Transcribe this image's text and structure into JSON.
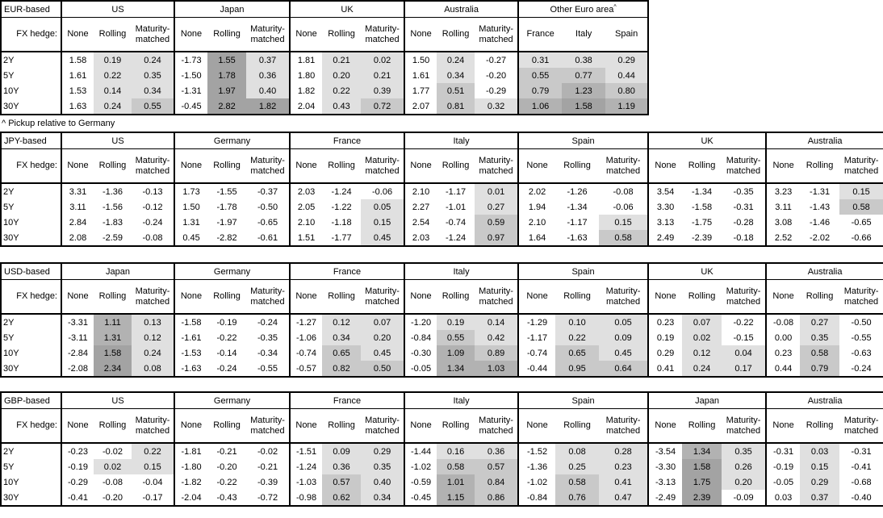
{
  "footnote": "^ Pickup relative to Germany",
  "chart_data": {
    "type": "table",
    "row_label_header": "FX hedge:",
    "maturities": [
      "2Y",
      "5Y",
      "10Y",
      "30Y"
    ],
    "hedge_columns": [
      "None",
      "Rolling",
      "Maturity-matched"
    ],
    "shading": {
      "s1": "#E0E0E0",
      "s2": "#C9C9C9",
      "s3": "#B2B2B2",
      "s4": "#A3A3A3"
    },
    "shading_rule": "cells shaded by value: <0 white, 0-0.5 s1, 0.5-1 s2, 1-1.5 s3, >=1.5 s4; applies to Rolling and Maturity-matched columns and all Other Euro area columns",
    "sections": [
      {
        "id": "eur",
        "base_label": "EUR-based",
        "blocks": [
          {
            "country": "US",
            "columns": "hedge",
            "rows": [
              [
                1.58,
                0.19,
                0.24
              ],
              [
                1.61,
                0.22,
                0.35
              ],
              [
                1.53,
                0.14,
                0.34
              ],
              [
                1.63,
                0.24,
                0.55
              ]
            ]
          },
          {
            "country": "Japan",
            "columns": "hedge",
            "rows": [
              [
                -1.73,
                1.55,
                0.37
              ],
              [
                -1.5,
                1.78,
                0.36
              ],
              [
                -1.31,
                1.97,
                0.4
              ],
              [
                -0.45,
                2.82,
                1.82
              ]
            ]
          },
          {
            "country": "UK",
            "columns": "hedge",
            "rows": [
              [
                1.81,
                0.21,
                0.02
              ],
              [
                1.8,
                0.2,
                0.21
              ],
              [
                1.82,
                0.22,
                0.39
              ],
              [
                2.04,
                0.43,
                0.72
              ]
            ]
          },
          {
            "country": "Australia",
            "columns": "hedge",
            "rows": [
              [
                1.5,
                0.24,
                -0.27
              ],
              [
                1.61,
                0.34,
                -0.2
              ],
              [
                1.77,
                0.51,
                -0.29
              ],
              [
                2.07,
                0.81,
                0.32
              ]
            ]
          },
          {
            "country": "Other Euro area",
            "sup": "^",
            "columns": [
              "France",
              "Italy",
              "Spain"
            ],
            "rows": [
              [
                0.31,
                0.38,
                0.29
              ],
              [
                0.55,
                0.77,
                0.44
              ],
              [
                0.79,
                1.23,
                0.8
              ],
              [
                1.06,
                1.58,
                1.19
              ]
            ]
          }
        ]
      },
      {
        "id": "jpy",
        "base_label": "JPY-based",
        "blocks": [
          {
            "country": "US",
            "columns": "hedge",
            "rows": [
              [
                3.31,
                -1.36,
                -0.13
              ],
              [
                3.11,
                -1.56,
                -0.12
              ],
              [
                2.84,
                -1.83,
                -0.24
              ],
              [
                2.08,
                -2.59,
                -0.08
              ]
            ]
          },
          {
            "country": "Germany",
            "columns": "hedge",
            "rows": [
              [
                1.73,
                -1.55,
                -0.37
              ],
              [
                1.5,
                -1.78,
                -0.5
              ],
              [
                1.31,
                -1.97,
                -0.65
              ],
              [
                0.45,
                -2.82,
                -0.61
              ]
            ]
          },
          {
            "country": "France",
            "columns": "hedge",
            "rows": [
              [
                2.03,
                -1.24,
                -0.06
              ],
              [
                2.05,
                -1.22,
                0.05
              ],
              [
                2.1,
                -1.18,
                0.15
              ],
              [
                1.51,
                -1.77,
                0.45
              ]
            ]
          },
          {
            "country": "Italy",
            "columns": "hedge",
            "rows": [
              [
                2.1,
                -1.17,
                0.01
              ],
              [
                2.27,
                -1.01,
                0.27
              ],
              [
                2.54,
                -0.74,
                0.59
              ],
              [
                2.03,
                -1.24,
                0.97
              ]
            ]
          },
          {
            "country": "Spain",
            "columns": "hedge",
            "rows": [
              [
                2.02,
                -1.26,
                -0.08
              ],
              [
                1.94,
                -1.34,
                -0.06
              ],
              [
                2.1,
                -1.17,
                0.15
              ],
              [
                1.64,
                -1.63,
                0.58
              ]
            ]
          },
          {
            "country": "UK",
            "columns": "hedge",
            "rows": [
              [
                3.54,
                -1.34,
                -0.35
              ],
              [
                3.3,
                -1.58,
                -0.31
              ],
              [
                3.13,
                -1.75,
                -0.28
              ],
              [
                2.49,
                -2.39,
                -0.18
              ]
            ]
          },
          {
            "country": "Australia",
            "columns": "hedge",
            "rows": [
              [
                3.23,
                -1.31,
                0.15
              ],
              [
                3.11,
                -1.43,
                0.58
              ],
              [
                3.08,
                -1.46,
                -0.65
              ],
              [
                2.52,
                -2.02,
                -0.66
              ]
            ]
          }
        ]
      },
      {
        "id": "usd",
        "base_label": "USD-based",
        "blocks": [
          {
            "country": "Japan",
            "columns": "hedge",
            "rows": [
              [
                -3.31,
                1.11,
                0.13
              ],
              [
                -3.11,
                1.31,
                0.12
              ],
              [
                -2.84,
                1.58,
                0.24
              ],
              [
                -2.08,
                2.34,
                0.08
              ]
            ]
          },
          {
            "country": "Germany",
            "columns": "hedge",
            "rows": [
              [
                -1.58,
                -0.19,
                -0.24
              ],
              [
                -1.61,
                -0.22,
                -0.35
              ],
              [
                -1.53,
                -0.14,
                -0.34
              ],
              [
                -1.63,
                -0.24,
                -0.55
              ]
            ]
          },
          {
            "country": "France",
            "columns": "hedge",
            "rows": [
              [
                -1.27,
                0.12,
                0.07
              ],
              [
                -1.06,
                0.34,
                0.2
              ],
              [
                -0.74,
                0.65,
                0.45
              ],
              [
                -0.57,
                0.82,
                0.5
              ]
            ]
          },
          {
            "country": "Italy",
            "columns": "hedge",
            "rows": [
              [
                -1.2,
                0.19,
                0.14
              ],
              [
                -0.84,
                0.55,
                0.42
              ],
              [
                -0.3,
                1.09,
                0.89
              ],
              [
                -0.05,
                1.34,
                1.03
              ]
            ]
          },
          {
            "country": "Spain",
            "columns": "hedge",
            "rows": [
              [
                -1.29,
                0.1,
                0.05
              ],
              [
                -1.17,
                0.22,
                0.09
              ],
              [
                -0.74,
                0.65,
                0.45
              ],
              [
                -0.44,
                0.95,
                0.64
              ]
            ]
          },
          {
            "country": "UK",
            "columns": "hedge",
            "rows": [
              [
                0.23,
                0.07,
                -0.22
              ],
              [
                0.19,
                0.02,
                -0.15
              ],
              [
                0.29,
                0.12,
                0.04
              ],
              [
                0.41,
                0.24,
                0.17
              ]
            ]
          },
          {
            "country": "Australia",
            "columns": "hedge",
            "rows": [
              [
                -0.08,
                0.27,
                -0.5
              ],
              [
                0.0,
                0.35,
                -0.55
              ],
              [
                0.23,
                0.58,
                -0.63
              ],
              [
                0.44,
                0.79,
                -0.24
              ]
            ]
          }
        ]
      },
      {
        "id": "gbp",
        "base_label": "GBP-based",
        "blocks": [
          {
            "country": "US",
            "columns": "hedge",
            "rows": [
              [
                -0.23,
                -0.02,
                0.22
              ],
              [
                -0.19,
                0.02,
                0.15
              ],
              [
                -0.29,
                -0.08,
                -0.04
              ],
              [
                -0.41,
                -0.2,
                -0.17
              ]
            ]
          },
          {
            "country": "Germany",
            "columns": "hedge",
            "rows": [
              [
                -1.81,
                -0.21,
                -0.02
              ],
              [
                -1.8,
                -0.2,
                -0.21
              ],
              [
                -1.82,
                -0.22,
                -0.39
              ],
              [
                -2.04,
                -0.43,
                -0.72
              ]
            ]
          },
          {
            "country": "France",
            "columns": "hedge",
            "rows": [
              [
                -1.51,
                0.09,
                0.29
              ],
              [
                -1.24,
                0.36,
                0.35
              ],
              [
                -1.03,
                0.57,
                0.4
              ],
              [
                -0.98,
                0.62,
                0.34
              ]
            ]
          },
          {
            "country": "Italy",
            "columns": "hedge",
            "rows": [
              [
                -1.44,
                0.16,
                0.36
              ],
              [
                -1.02,
                0.58,
                0.57
              ],
              [
                -0.59,
                1.01,
                0.84
              ],
              [
                -0.45,
                1.15,
                0.86
              ]
            ]
          },
          {
            "country": "Spain",
            "columns": "hedge",
            "rows": [
              [
                -1.52,
                0.08,
                0.28
              ],
              [
                -1.36,
                0.25,
                0.23
              ],
              [
                -1.02,
                0.58,
                0.41
              ],
              [
                -0.84,
                0.76,
                0.47
              ]
            ]
          },
          {
            "country": "Japan",
            "columns": "hedge",
            "rows": [
              [
                -3.54,
                1.34,
                0.35
              ],
              [
                -3.3,
                1.58,
                0.26
              ],
              [
                -3.13,
                1.75,
                0.2
              ],
              [
                -2.49,
                2.39,
                -0.09
              ]
            ]
          },
          {
            "country": "Australia",
            "columns": "hedge",
            "rows": [
              [
                -0.31,
                0.03,
                -0.31
              ],
              [
                -0.19,
                0.15,
                -0.41
              ],
              [
                -0.05,
                0.29,
                -0.68
              ],
              [
                0.03,
                0.37,
                -0.4
              ]
            ]
          }
        ]
      }
    ]
  }
}
